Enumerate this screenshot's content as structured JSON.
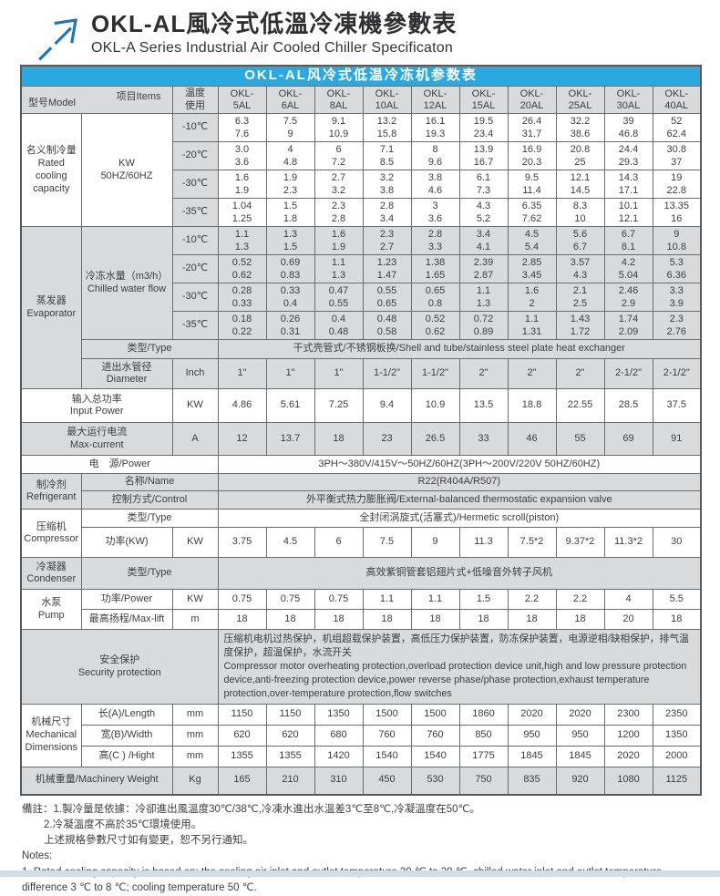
{
  "page": {
    "title_cn": "OKL-AL風冷式低溫冷凍機參數表",
    "title_en": "OKL-A Series Industrial Air Cooled Chiller Specificaton"
  },
  "table": {
    "title": "OKL-AL风冷式低温冷冻机参数表",
    "corner_model": "型号Model",
    "corner_items": "项目Items",
    "temp_header": [
      "温度",
      "使用"
    ],
    "model_prefix": "OKL-",
    "models": [
      "5AL",
      "6AL",
      "8AL",
      "10AL",
      "12AL",
      "15AL",
      "20AL",
      "25AL",
      "30AL",
      "40AL"
    ],
    "sections": {
      "rated": {
        "label_cn": "名义制冷量",
        "label_en": "Rated cooling capacity",
        "unit_line1": "KW",
        "unit_line2": "50HZ/60HZ",
        "rows": [
          {
            "temp": "-10℃",
            "v50": [
              "6.3",
              "7.5",
              "9.1",
              "13.2",
              "16.1",
              "19.5",
              "26.4",
              "32.2",
              "39",
              "52"
            ],
            "v60": [
              "7.6",
              "9",
              "10.9",
              "15.8",
              "19.3",
              "23.4",
              "31.7",
              "38.6",
              "46.8",
              "62.4"
            ]
          },
          {
            "temp": "-20℃",
            "v50": [
              "3.0",
              "4",
              "6",
              "7.1",
              "8",
              "13.9",
              "16.9",
              "20.8",
              "24.4",
              "30.8"
            ],
            "v60": [
              "3.6",
              "4.8",
              "7.2",
              "8.5",
              "9.6",
              "16.7",
              "20.3",
              "25",
              "29.3",
              "37"
            ]
          },
          {
            "temp": "-30℃",
            "v50": [
              "1.6",
              "1.9",
              "2.7",
              "3.2",
              "3.8",
              "6.1",
              "9.5",
              "12.1",
              "14.3",
              "19"
            ],
            "v60": [
              "1.9",
              "2.3",
              "3.2",
              "3.8",
              "4.6",
              "7.3",
              "11.4",
              "14.5",
              "17.1",
              "22.8"
            ]
          },
          {
            "temp": "-35℃",
            "v50": [
              "1.04",
              "1.5",
              "2.3",
              "2.8",
              "3",
              "4.3",
              "6.35",
              "8.3",
              "10.1",
              "13.35"
            ],
            "v60": [
              "1.25",
              "1.8",
              "2.8",
              "3.4",
              "3.6",
              "5.2",
              "7.62",
              "10",
              "12.1",
              "16"
            ]
          }
        ]
      },
      "evaporator": {
        "label_cn": "蒸发器",
        "label_en": "Evaporator",
        "flow_label_cn": "冷冻水量（m3/h）",
        "flow_label_en": "Chilled water flow",
        "rows": [
          {
            "temp": "-10℃",
            "v50": [
              "1.1",
              "1.3",
              "1.6",
              "2.3",
              "2.8",
              "3.4",
              "4.5",
              "5.6",
              "6.7",
              "9"
            ],
            "v60": [
              "1.3",
              "1.5",
              "1.9",
              "2.7",
              "3.3",
              "4.1",
              "5.4",
              "6.7",
              "8.1",
              "10.8"
            ]
          },
          {
            "temp": "-20℃",
            "v50": [
              "0.52",
              "0.69",
              "1.1",
              "1.23",
              "1.38",
              "2.39",
              "2.85",
              "3.57",
              "4.2",
              "5.3"
            ],
            "v60": [
              "0.62",
              "0.83",
              "1.3",
              "1.47",
              "1.65",
              "2.87",
              "3.45",
              "4.3",
              "5.04",
              "6.36"
            ]
          },
          {
            "temp": "-30℃",
            "v50": [
              "0.28",
              "0.33",
              "0.47",
              "0.55",
              "0.65",
              "1.1",
              "1.6",
              "2.1",
              "2.46",
              "3.3"
            ],
            "v60": [
              "0.33",
              "0.4",
              "0.55",
              "0.65",
              "0.8",
              "1.3",
              "2",
              "2.5",
              "2.9",
              "3.9"
            ]
          },
          {
            "temp": "-35℃",
            "v50": [
              "0.18",
              "0.26",
              "0.4",
              "0.48",
              "0.52",
              "0.72",
              "1.1",
              "1.43",
              "1.74",
              "2.3"
            ],
            "v60": [
              "0.22",
              "0.31",
              "0.48",
              "0.58",
              "0.62",
              "0.89",
              "1.31",
              "1.72",
              "2.09",
              "2.76"
            ]
          }
        ],
        "type_label": "类型/Type",
        "type_value": "干式壳管式/不锈钢板换/Shell and tube/stainless steel plate heat exchanger",
        "diameter_label_cn": "进出水管径",
        "diameter_label_en": "Diameter",
        "diameter_unit": "Inch",
        "diameter_values": [
          "1\"",
          "1\"",
          "1\"",
          "1-1/2\"",
          "1-1/2\"",
          "2\"",
          "2\"",
          "2\"",
          "2-1/2\"",
          "2-1/2\""
        ]
      },
      "input_power": {
        "label_cn": "输入总功率",
        "label_en": "Input Power",
        "unit": "KW",
        "values": [
          "4.86",
          "5.61",
          "7.25",
          "9.4",
          "10.9",
          "13.5",
          "18.8",
          "22.55",
          "28.5",
          "37.5"
        ]
      },
      "max_current": {
        "label_cn": "最大运行电流",
        "label_en": "Max-current",
        "unit": "A",
        "values": [
          "12",
          "13.7",
          "18",
          "23",
          "26.5",
          "33",
          "46",
          "55",
          "69",
          "91"
        ]
      },
      "power": {
        "label": "电　源/Power",
        "value": "3PH～380V/415V～50HZ/60HZ(3PH～200V/220V  50HZ/60HZ)"
      },
      "refrigerant": {
        "label_cn": "制冷剂",
        "label_en": "Refrigerant",
        "name_label": "名称/Name",
        "name_value": "R22(R404A/R507)",
        "control_label": "控制方式/Control",
        "control_value": "外平衡式热力膨胀阀/External-balanced thermostatic expansion valve"
      },
      "compressor": {
        "label_cn": "压缩机",
        "label_en": "Compressor",
        "type_label": "类型/Type",
        "type_value": "全封闭涡旋式(活塞式)/Hermetic scroll(piston)",
        "power_label": "功率(KW)",
        "power_unit": "KW",
        "power_values": [
          "3.75",
          "4.5",
          "6",
          "7.5",
          "9",
          "11.3",
          "7.5*2",
          "9.37*2",
          "11.3*2",
          "30"
        ]
      },
      "condenser": {
        "label_cn": "冷凝器",
        "label_en": "Condenser",
        "type_label": "类型/Type",
        "type_value": "高效紫铜管套铝翅片式+低噪音外转子风机"
      },
      "pump": {
        "label_cn": "水泵",
        "label_en": "Pump",
        "power_label": "功率/Power",
        "power_unit": "KW",
        "power_values": [
          "0.75",
          "0.75",
          "0.75",
          "1.1",
          "1.1",
          "1.5",
          "2.2",
          "2.2",
          "4",
          "5.5"
        ],
        "lift_label": "最高扬程/Max-lift",
        "lift_unit": "m",
        "lift_values": [
          "18",
          "18",
          "18",
          "18",
          "18",
          "18",
          "18",
          "18",
          "20",
          "18"
        ]
      },
      "security": {
        "label_cn": "安全保护",
        "label_en": "Security protection",
        "text_cn": "压缩机电机过热保护，机组超载保护装置，高低压力保护装置，防冻保护装置，电源逆相/缺相保护，排气温度保护，超温保护，水流开关",
        "text_en": "Compressor motor overheating protection,overload protection device unit,high and low pressure protection device,anti-freezing protection device,power reverse phase/phase protection,exhaust temperature protection,over-temperature protection,flow switches"
      },
      "dimensions": {
        "label_cn": "机械尺寸",
        "label_en": "Mechanical Dimensions",
        "rows": [
          {
            "label": "长(A)/Length",
            "unit": "mm",
            "values": [
              "1150",
              "1150",
              "1350",
              "1500",
              "1500",
              "1860",
              "2020",
              "2020",
              "2300",
              "2350"
            ]
          },
          {
            "label": "宽(B)/Width",
            "unit": "mm",
            "values": [
              "620",
              "620",
              "680",
              "760",
              "760",
              "850",
              "950",
              "950",
              "1200",
              "1350"
            ]
          },
          {
            "label": "高(C ) /Hight",
            "unit": "mm",
            "values": [
              "1355",
              "1355",
              "1420",
              "1540",
              "1540",
              "1775",
              "1845",
              "1845",
              "2020",
              "2000"
            ]
          }
        ]
      },
      "weight": {
        "label": "机械重量/Machinery Weight",
        "unit": "Kg",
        "values": [
          "165",
          "210",
          "310",
          "450",
          "530",
          "750",
          "835",
          "920",
          "1080",
          "1125"
        ]
      }
    }
  },
  "notes": {
    "line1": "備註：1.製冷量是依據：冷卻進出風溫度30℃/38℃,冷凍水進出水溫差3℃至8℃,冷凝溫度在50℃。",
    "line2": "2.冷凝溫度不高於35℃環境使用。",
    "line3": "上述規格參數尺寸如有變更，恕不另行通知。",
    "line4": "Notes:",
    "line5": "1. Rated cooling capacity is based on: the cooling air inlet and outlet temperature 30 ℃ to 38 ℃, chilled water inlet and outlet temperature difference 3 ℃ to 8 ℃; cooling temperature 50 ℃."
  },
  "colors": {
    "accent_blue": "#29a9e0",
    "logo_blue": "#1b75bc",
    "cell_gray": "#d9dadb",
    "bottom_strip": "#cfdfe9"
  }
}
